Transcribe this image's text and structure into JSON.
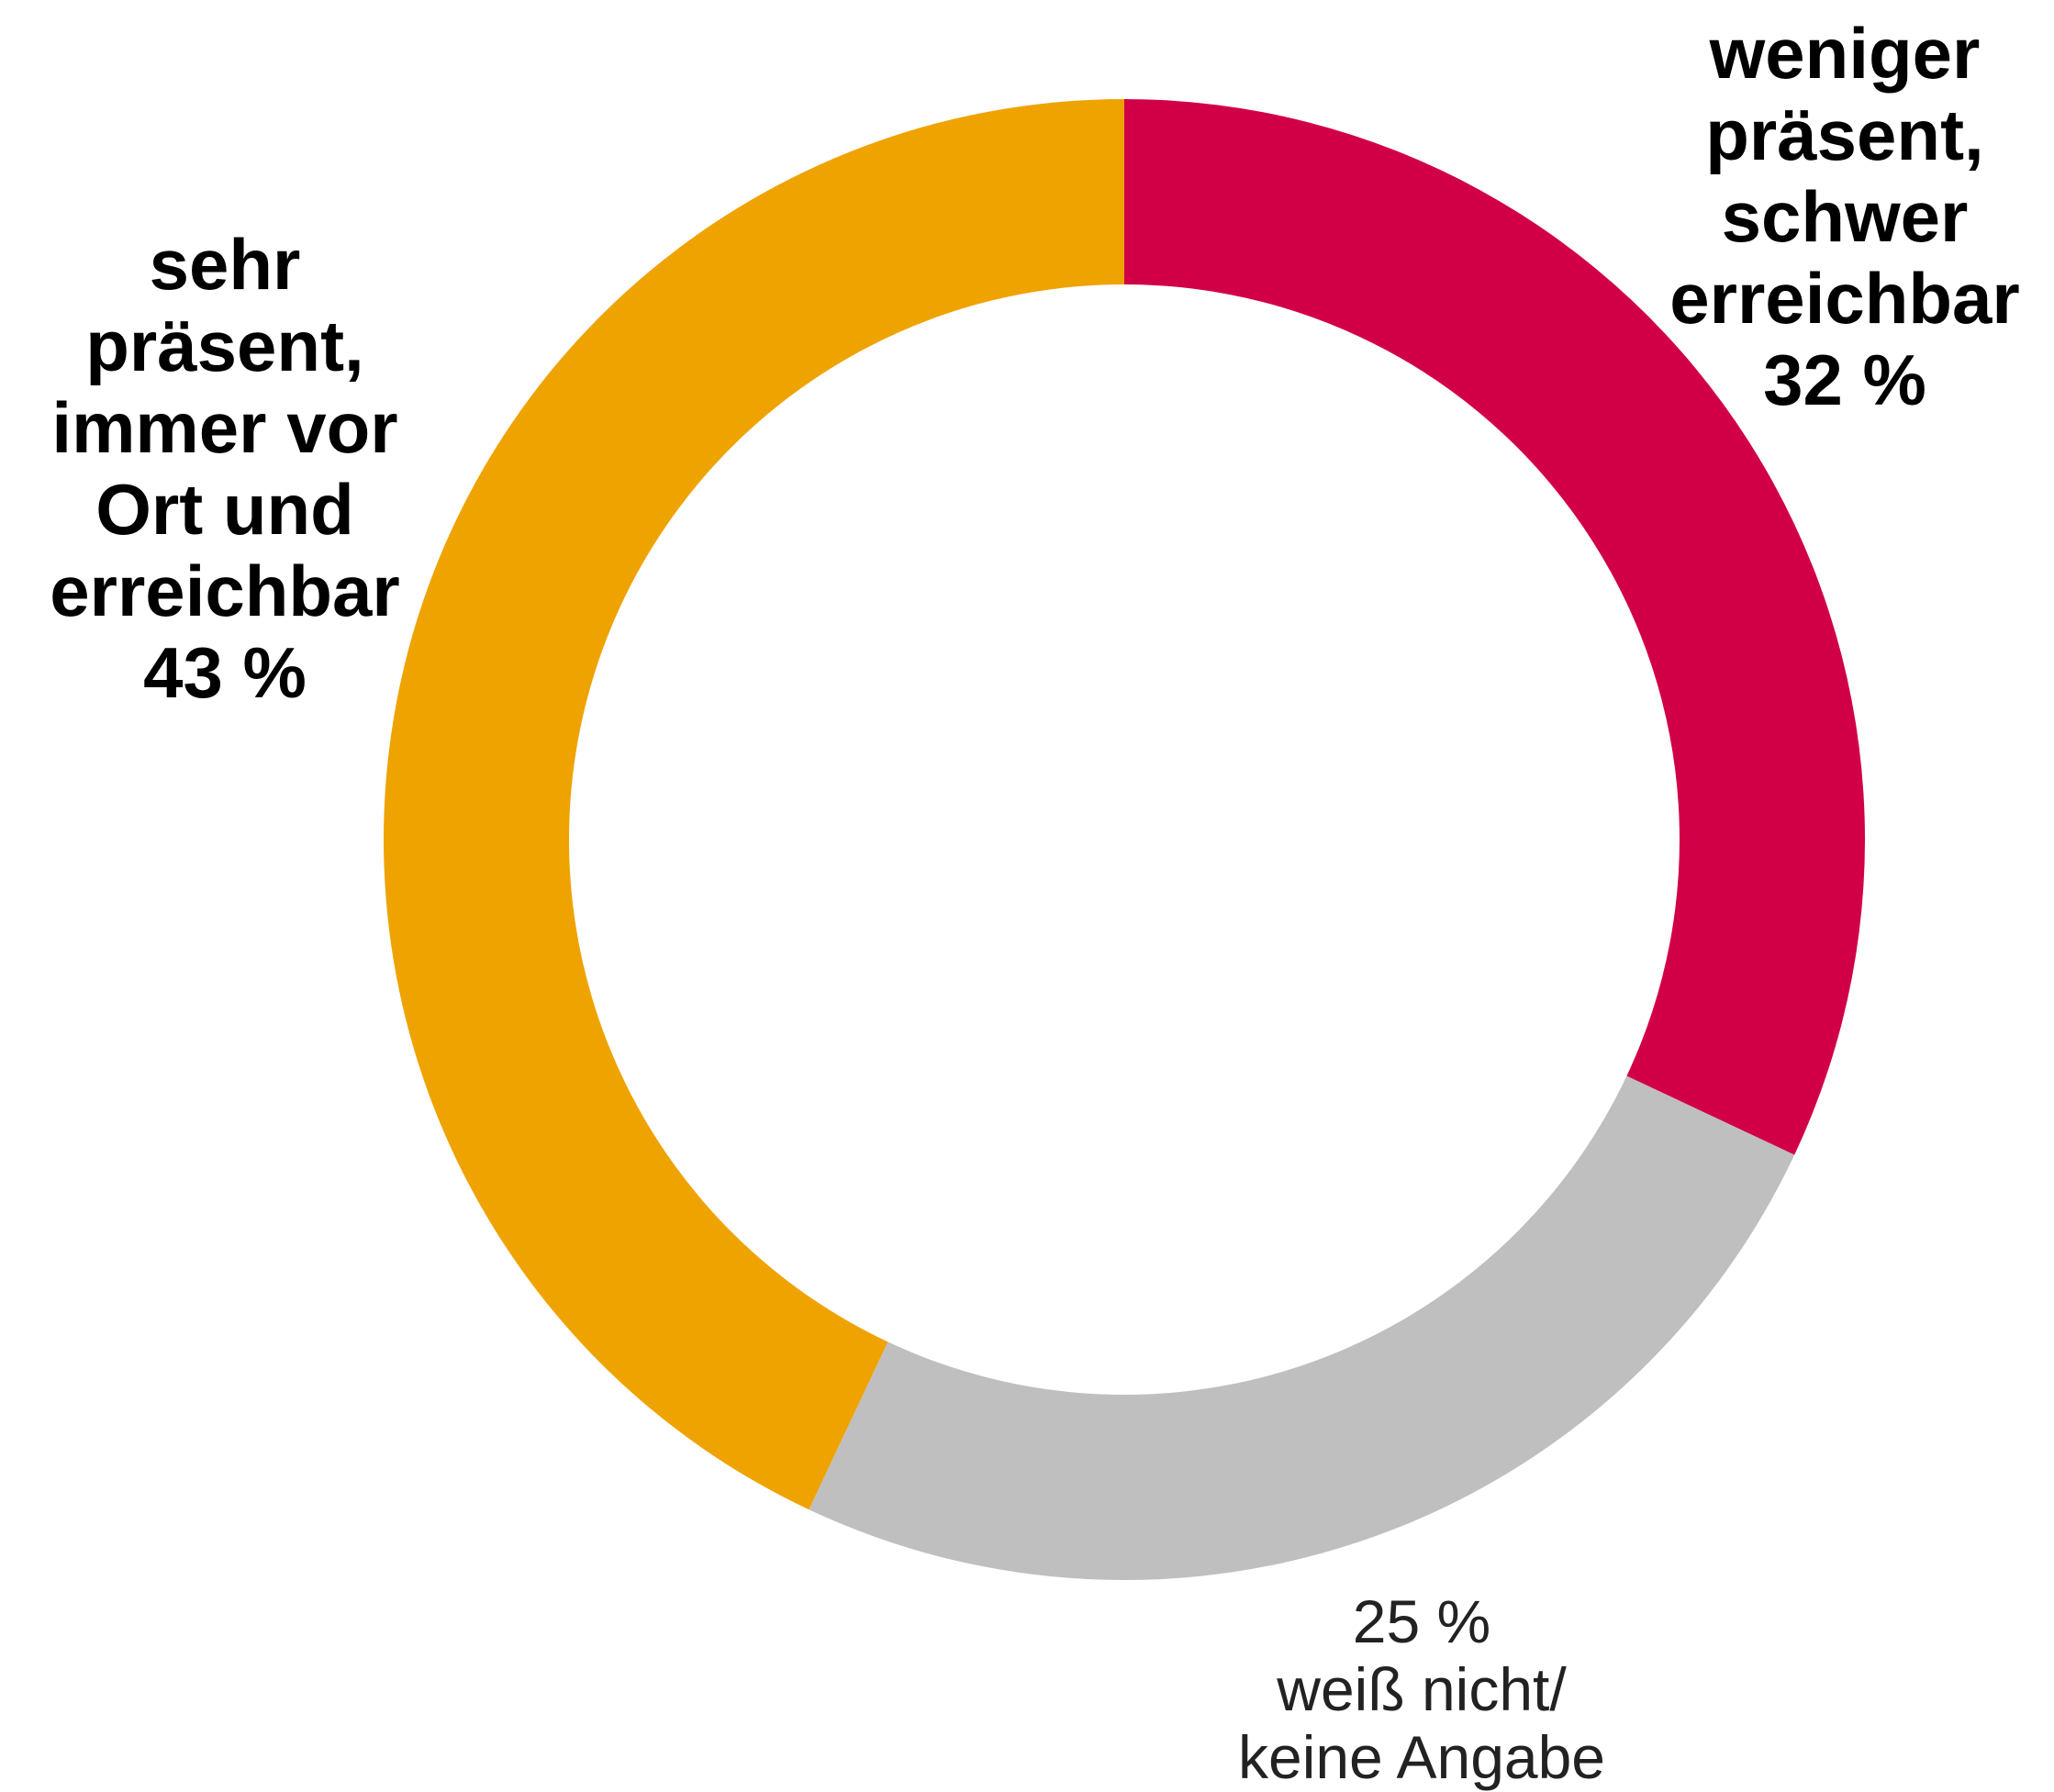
{
  "chart_data": {
    "type": "donut",
    "categories": [
      "weniger präsent, schwer erreichbar",
      "weiß nicht/ keine Angabe",
      "sehr präsent, immer vor Ort und erreichbar"
    ],
    "values": [
      32,
      25,
      43
    ],
    "value_labels": [
      "32 %",
      "25 %",
      "43 %"
    ],
    "colors": [
      "#d10046",
      "#bfbfbf",
      "#eea300"
    ]
  }
}
